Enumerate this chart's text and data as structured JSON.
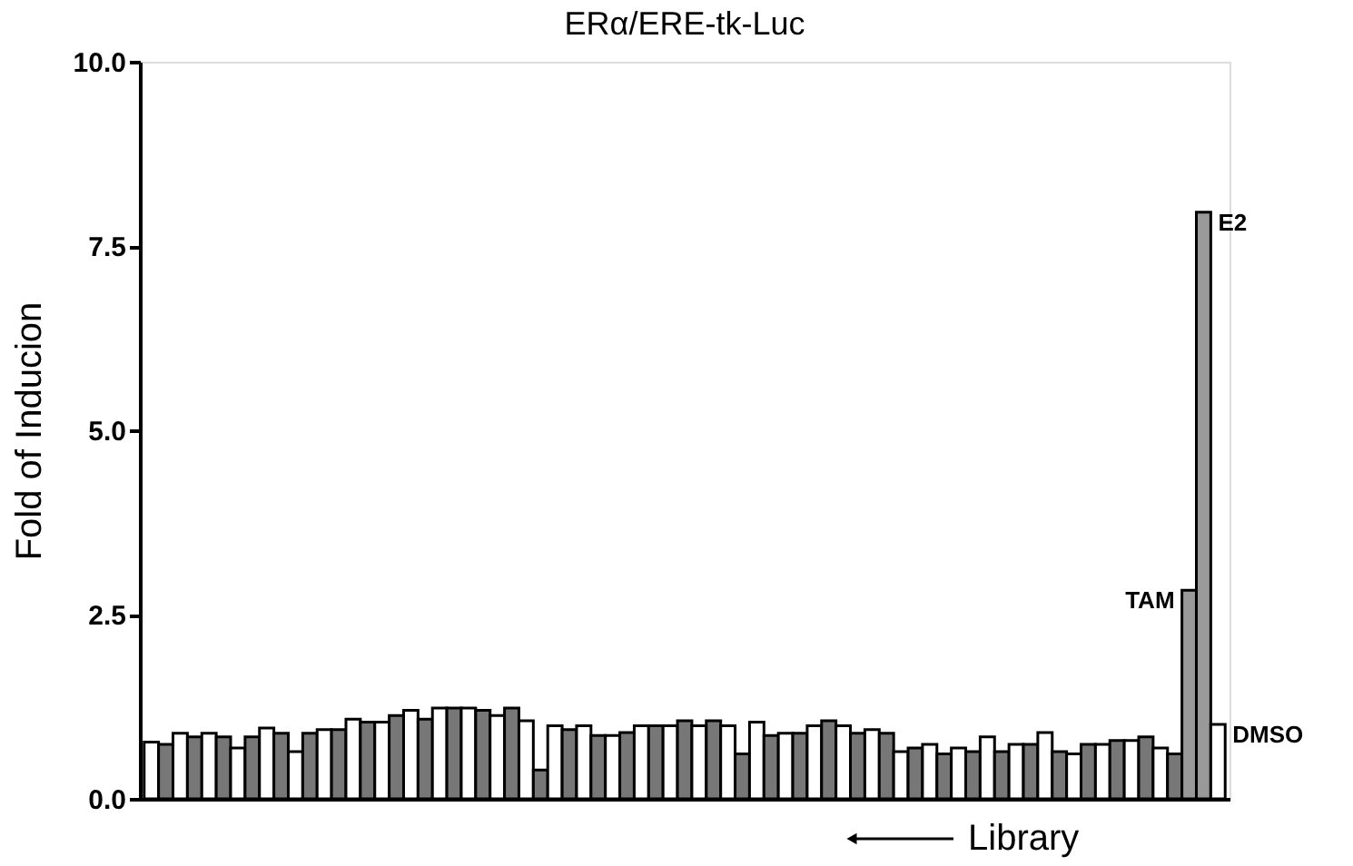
{
  "chart_data": {
    "type": "bar",
    "title": "ERα/ERE-tk-Luc",
    "ylabel": "Fold of Inducion",
    "categories": [
      null,
      null,
      null,
      null,
      null,
      null,
      null,
      null,
      null,
      null,
      null,
      null,
      null,
      null,
      null,
      null,
      null,
      null,
      null,
      null,
      null,
      null,
      null,
      null,
      null,
      null,
      null,
      null,
      null,
      null,
      null,
      null,
      null,
      null,
      null,
      null,
      null,
      null,
      null,
      null,
      null,
      null,
      null,
      null,
      null,
      null,
      null,
      null,
      null,
      null,
      null,
      null,
      null,
      null,
      null,
      null,
      null,
      null,
      null,
      null,
      null,
      null,
      null,
      null,
      null,
      null,
      null,
      null,
      null,
      null,
      null,
      null,
      null,
      null,
      null
    ],
    "values": [
      0.77,
      0.74,
      0.89,
      0.84,
      0.89,
      0.84,
      0.69,
      0.84,
      0.96,
      0.89,
      0.64,
      0.89,
      0.94,
      0.94,
      1.08,
      1.04,
      1.04,
      1.13,
      1.2,
      1.08,
      1.23,
      1.23,
      1.23,
      1.2,
      1.13,
      1.23,
      1.06,
      0.39,
      0.99,
      0.94,
      0.99,
      0.86,
      0.86,
      0.9,
      0.99,
      0.99,
      0.99,
      1.06,
      0.99,
      1.06,
      0.99,
      0.61,
      1.04,
      0.86,
      0.89,
      0.89,
      0.99,
      1.06,
      0.99,
      0.89,
      0.94,
      0.89,
      0.64,
      0.69,
      0.74,
      0.61,
      0.69,
      0.64,
      0.84,
      0.64,
      0.74,
      0.74,
      0.9,
      0.64,
      0.61,
      0.74,
      0.74,
      0.79,
      0.79,
      0.84,
      0.69,
      0.61,
      2.83,
      7.96,
      1.01
    ],
    "colors": [
      "#ffffff",
      "#777777",
      "#ffffff",
      "#777777",
      "#ffffff",
      "#777777",
      "#ffffff",
      "#777777",
      "#ffffff",
      "#777777",
      "#ffffff",
      "#777777",
      "#ffffff",
      "#777777",
      "#ffffff",
      "#777777",
      "#ffffff",
      "#777777",
      "#ffffff",
      "#777777",
      "#ffffff",
      "#777777",
      "#ffffff",
      "#777777",
      "#ffffff",
      "#777777",
      "#ffffff",
      "#777777",
      "#ffffff",
      "#777777",
      "#ffffff",
      "#777777",
      "#ffffff",
      "#777777",
      "#ffffff",
      "#777777",
      "#ffffff",
      "#777777",
      "#ffffff",
      "#777777",
      "#ffffff",
      "#777777",
      "#ffffff",
      "#777777",
      "#ffffff",
      "#777777",
      "#ffffff",
      "#777777",
      "#ffffff",
      "#777777",
      "#ffffff",
      "#777777",
      "#ffffff",
      "#777777",
      "#ffffff",
      "#777777",
      "#ffffff",
      "#777777",
      "#ffffff",
      "#777777",
      "#ffffff",
      "#777777",
      "#ffffff",
      "#777777",
      "#ffffff",
      "#777777",
      "#ffffff",
      "#777777",
      "#ffffff",
      "#777777",
      "#ffffff",
      "#777777",
      "#999999",
      "#999999",
      "#ffffff"
    ],
    "ylim": [
      0,
      10
    ],
    "yticks": [
      {
        "value": 0,
        "label": "0.0"
      },
      {
        "value": 2.5,
        "label": "2.5"
      },
      {
        "value": 5,
        "label": "5.0"
      },
      {
        "value": 7.5,
        "label": "7.5"
      },
      {
        "value": 10,
        "label": "10.0"
      }
    ],
    "tick_labels": "y",
    "grid": false,
    "annotations": [
      "TAM",
      "E2",
      "DMSO",
      "Library"
    ]
  }
}
